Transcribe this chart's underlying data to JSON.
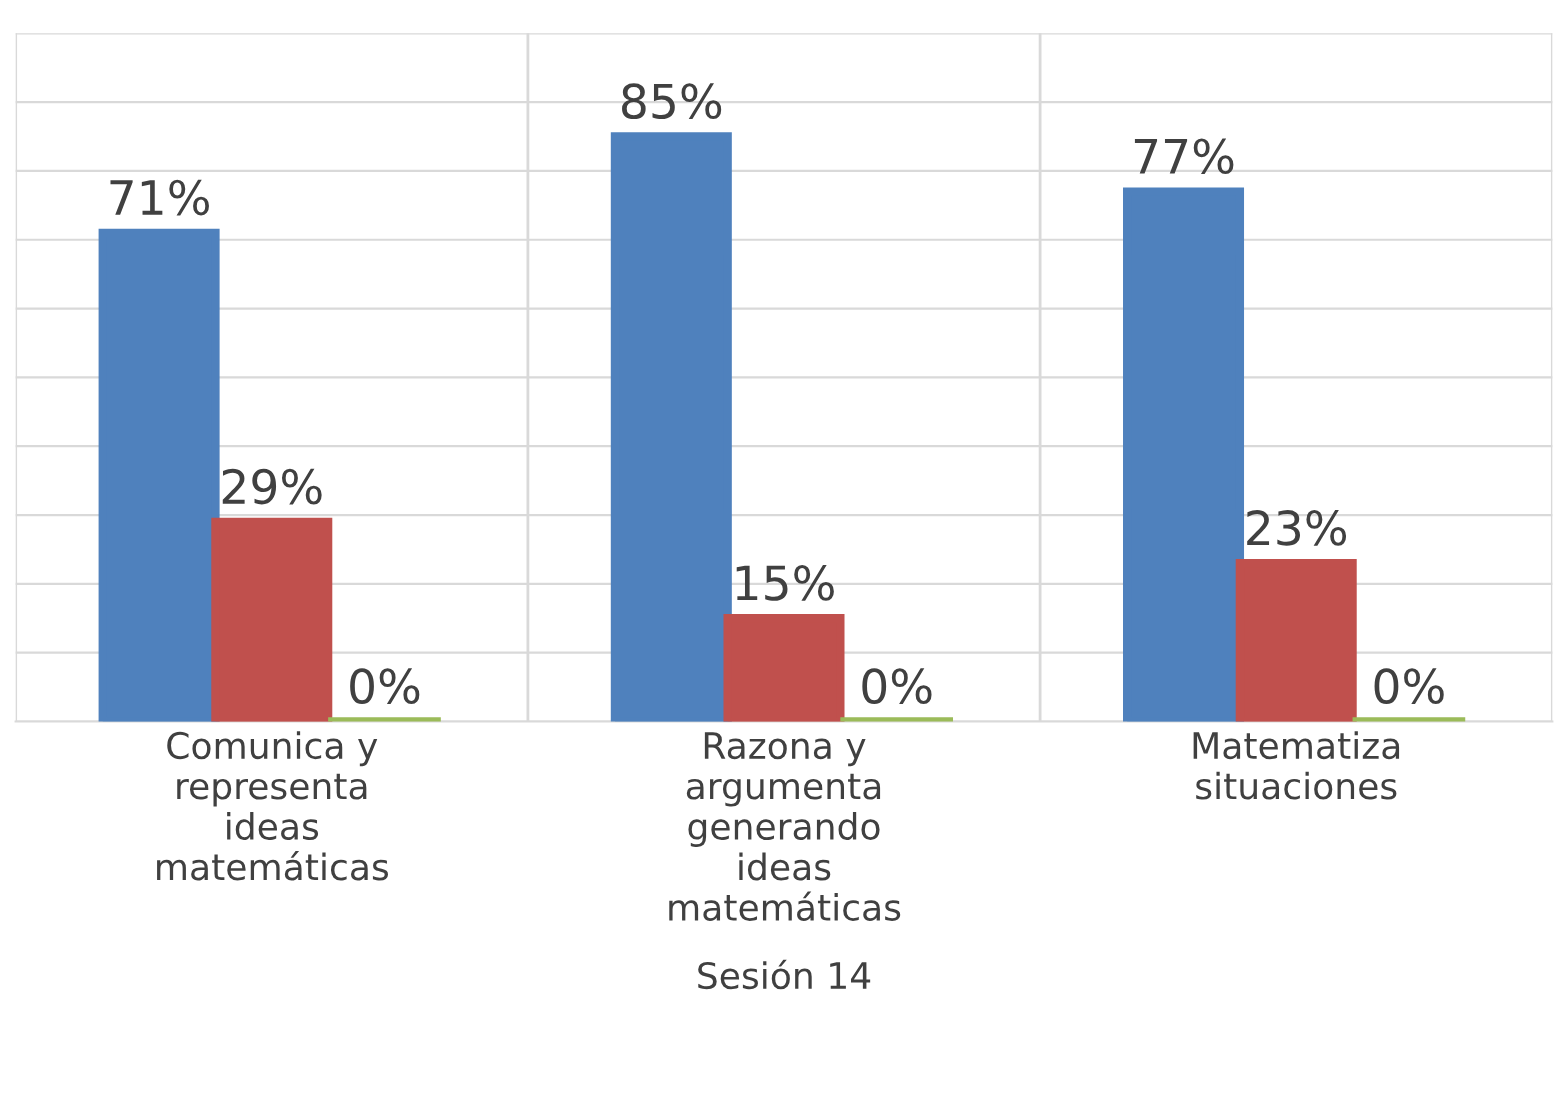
{
  "chart_data": {
    "type": "bar",
    "xlabel": "Sesión 14",
    "categories": [
      "Comunica y\nrepresenta\nideas\nmatemáticas",
      "Razona y\nargumenta\ngenerando\nideas\nmatemáticas",
      "Matematiza\nsituaciones"
    ],
    "series": [
      {
        "color": "#4f81bd",
        "values": [
          71,
          85,
          77
        ],
        "value_labels": [
          "71%",
          "85%",
          "77%"
        ]
      },
      {
        "color": "#c0504d",
        "values": [
          29,
          15,
          23
        ],
        "value_labels": [
          "29%",
          "15%",
          "23%"
        ]
      },
      {
        "color": "#9bbb59",
        "values": [
          0,
          0,
          0
        ],
        "value_labels": [
          "0%",
          "0%",
          "0%"
        ]
      }
    ],
    "ylim": [
      0,
      100
    ],
    "yticks": [
      {
        "value": 0,
        "label": null
      },
      {
        "value": 10,
        "label": null
      },
      {
        "value": 20,
        "label": null
      },
      {
        "value": 30,
        "label": null
      },
      {
        "value": 40,
        "label": null
      },
      {
        "value": 50,
        "label": null
      },
      {
        "value": 60,
        "label": null
      },
      {
        "value": 70,
        "label": null
      },
      {
        "value": 80,
        "label": null
      },
      {
        "value": 90,
        "label": null
      },
      {
        "value": 100,
        "label": null
      }
    ],
    "tick_labels": "x",
    "grid": "y",
    "legend": false
  }
}
